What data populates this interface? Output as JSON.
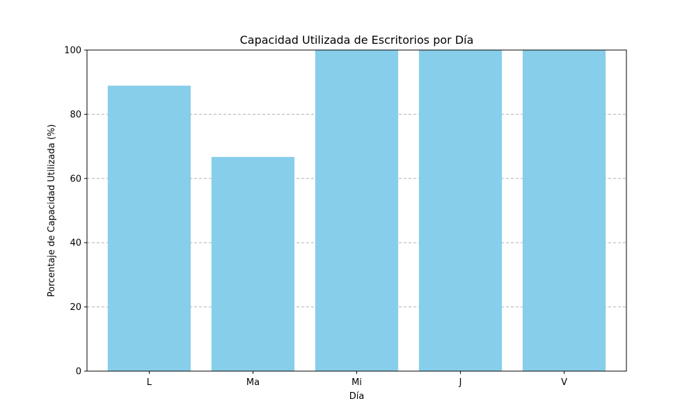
{
  "chart_data": {
    "type": "bar",
    "title": "Capacidad Utilizada de Escritorios por Día",
    "xlabel": "Día",
    "ylabel": "Porcentaje de Capacidad Utilizada (%)",
    "categories": [
      "L",
      "Ma",
      "Mi",
      "J",
      "V"
    ],
    "values": [
      88.9,
      66.7,
      100,
      100,
      100
    ],
    "ylim": [
      0,
      100
    ],
    "yticks": [
      0,
      20,
      40,
      60,
      80,
      100
    ],
    "grid": "y-dashed",
    "bar_color": "#87CEEB"
  }
}
